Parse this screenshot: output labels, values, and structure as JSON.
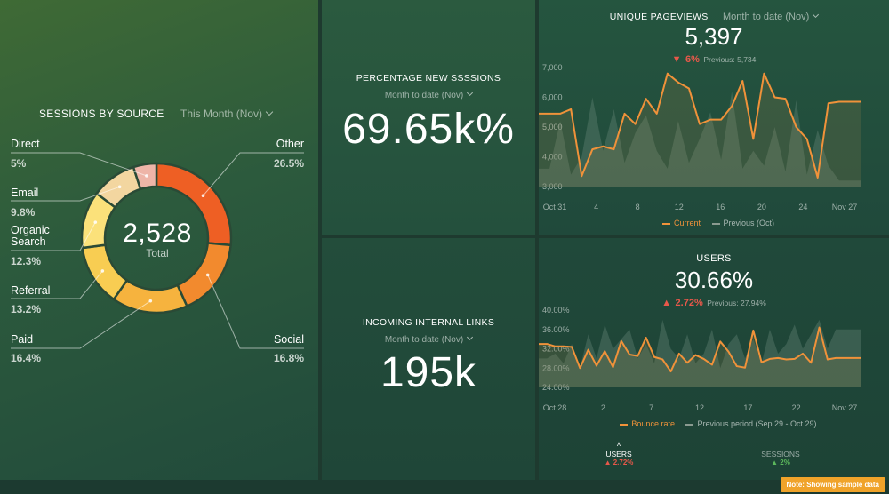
{
  "sessions_by_source": {
    "title": "SESSIONS BY SOURCE",
    "period": "This Month (Nov)",
    "total_value": "2,528",
    "total_label": "Total"
  },
  "new_sessions": {
    "title": "PERCENTAGE NEW SSSSIONS",
    "period": "Month to date (Nov)",
    "value": "69.65k%"
  },
  "internal_links": {
    "title": "INCOMING INTERNAL LINKS",
    "period": "Month to date (Nov)",
    "value": "195k"
  },
  "pageviews": {
    "title": "UNIQUE PAGEVIEWS",
    "period": "Month to date (Nov)",
    "value": "5,397",
    "delta": "6%",
    "previous": "Previous: 5,734",
    "legend_current": "Current",
    "legend_previous": "Previous (Oct)"
  },
  "users": {
    "title": "USERS",
    "value": "30.66%",
    "delta": "2.72%",
    "previous": "Previous: 27.94%",
    "legend_current": "Bounce rate",
    "legend_previous": "Previous period (Sep 29 - Oct 29)",
    "footer_left_label": "USERS",
    "footer_left_delta": "2.72%",
    "footer_right_label": "SESSIONS",
    "footer_right_delta": "2%"
  },
  "note": "Note: Showing sample data",
  "colors": {
    "current_line": "#f0923a",
    "previous_line": "#8a9a90",
    "delta_red": "#e8584a",
    "delta_green": "#5cb85c"
  },
  "chart_data": [
    {
      "type": "pie",
      "variant": "donut",
      "title": "SESSIONS BY SOURCE",
      "labels": [
        "Other",
        "Social",
        "Paid",
        "Referral",
        "Organic Search",
        "Email",
        "Direct"
      ],
      "display_values": [
        "26.5%",
        "16.8%",
        "16.4%",
        "13.2%",
        "12.3%",
        "9.8%",
        "5%"
      ],
      "values": [
        26.5,
        16.8,
        16.4,
        13.2,
        12.3,
        9.8,
        5
      ],
      "colors": [
        "#ee5f24",
        "#f28a2e",
        "#f6b33e",
        "#f8cd52",
        "#fbe17a",
        "#f3d6a0",
        "#eeb5a8"
      ]
    },
    {
      "type": "area",
      "title": "UNIQUE PAGEVIEWS",
      "x_ticks": [
        "Oct 31",
        "4",
        "8",
        "12",
        "16",
        "20",
        "24",
        "Nov 27"
      ],
      "y_ticks": [
        "3,000",
        "4,000",
        "5,000",
        "6,000",
        "7,000"
      ],
      "ylim": [
        3000,
        7000
      ],
      "series": [
        {
          "name": "Current",
          "values": [
            5450,
            5450,
            5450,
            5600,
            3350,
            4250,
            4350,
            4250,
            5450,
            5100,
            5950,
            5450,
            6800,
            6500,
            6300,
            5100,
            5250,
            5250,
            5700,
            6550,
            4600,
            6800,
            6000,
            5950,
            5000,
            4600,
            3300,
            5800,
            5850,
            5850,
            5850
          ]
        },
        {
          "name": "Previous (Oct)",
          "values": [
            3600,
            3600,
            5200,
            3400,
            4000,
            6000,
            4200,
            5600,
            3800,
            4800,
            5400,
            4200,
            3600,
            5200,
            3800,
            4600,
            5500,
            3900,
            6200,
            3600,
            4200,
            3700,
            5000,
            3500,
            5900,
            3400,
            4900,
            3700,
            3200,
            3200,
            3200
          ]
        }
      ]
    },
    {
      "type": "area",
      "title": "USERS",
      "x_ticks": [
        "Oct 28",
        "2",
        "7",
        "12",
        "17",
        "22",
        "Nov 27"
      ],
      "y_ticks": [
        "24.00%",
        "28.00%",
        "32.00%",
        "36.00%",
        "40.00%"
      ],
      "ylim": [
        24,
        40
      ],
      "series": [
        {
          "name": "Bounce rate",
          "values": [
            33,
            33,
            32.5,
            32.5,
            32.4,
            28,
            31.8,
            28.5,
            31.5,
            28.2,
            33.6,
            30.8,
            30.5,
            34.3,
            30.3,
            29.8,
            27.3,
            31,
            29.1,
            30.7,
            29.9,
            28.7,
            33.5,
            31.4,
            28.4,
            28.1,
            35.8,
            29.2,
            29.9,
            30.1,
            29.8,
            29.9,
            31,
            29.1,
            36.4,
            29.8,
            30.1,
            30.1,
            30.1,
            30.1
          ]
        },
        {
          "name": "Previous period (Sep 29 - Oct 29)",
          "values": [
            30,
            30,
            31,
            29,
            33,
            28,
            35,
            30,
            37,
            32,
            34,
            36,
            30,
            33,
            29,
            38,
            32,
            30,
            35,
            29,
            31,
            36,
            28,
            33,
            35,
            30,
            34,
            29,
            36,
            31,
            33,
            37,
            32,
            35,
            38,
            32,
            36,
            36,
            36,
            36
          ]
        }
      ]
    }
  ]
}
